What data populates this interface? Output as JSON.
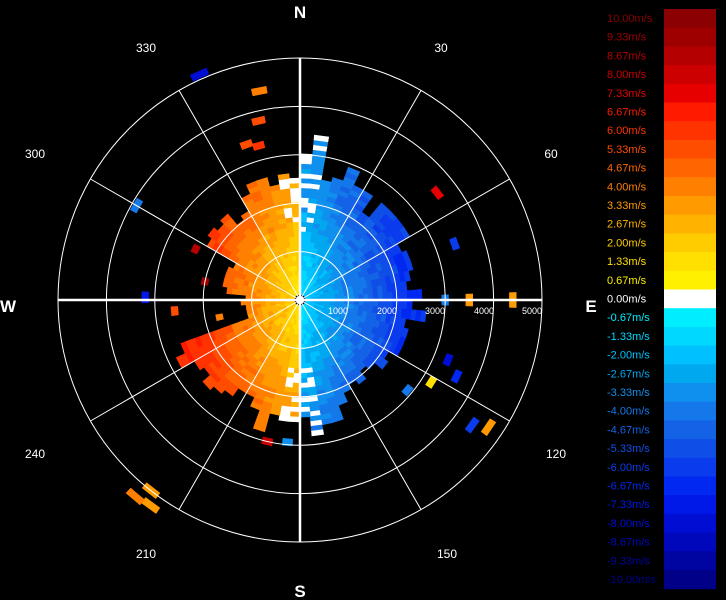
{
  "chart_data": {
    "type": "polar-ppi",
    "title": "",
    "cardinals": [
      "N",
      "E",
      "S",
      "W"
    ],
    "azimuth_labels": [
      "30",
      "60",
      "120",
      "150",
      "210",
      "240",
      "300",
      "330"
    ],
    "range_labels": [
      "1000",
      "2000",
      "3000",
      "4000",
      "5000"
    ],
    "range_max": 5000,
    "colorbar": {
      "unit": "m/s",
      "entries": [
        {
          "label": "10.00m/s",
          "value": 10.0,
          "color": "#8b0000"
        },
        {
          "label": "9.33m/s",
          "value": 9.33,
          "color": "#9e0000"
        },
        {
          "label": "8.67m/s",
          "value": 8.67,
          "color": "#b40000"
        },
        {
          "label": "8.00m/s",
          "value": 8.0,
          "color": "#cc0000"
        },
        {
          "label": "7.33m/s",
          "value": 7.33,
          "color": "#e60000"
        },
        {
          "label": "6.67m/s",
          "value": 6.67,
          "color": "#ff1a00"
        },
        {
          "label": "6.00m/s",
          "value": 6.0,
          "color": "#ff3300"
        },
        {
          "label": "5.33m/s",
          "value": 5.33,
          "color": "#ff4d00"
        },
        {
          "label": "4.67m/s",
          "value": 4.67,
          "color": "#ff6600"
        },
        {
          "label": "4.00m/s",
          "value": 4.0,
          "color": "#ff8000"
        },
        {
          "label": "3.33m/s",
          "value": 3.33,
          "color": "#ff9a00"
        },
        {
          "label": "2.67m/s",
          "value": 2.67,
          "color": "#ffb300"
        },
        {
          "label": "2.00m/s",
          "value": 2.0,
          "color": "#ffcc00"
        },
        {
          "label": "1.33m/s",
          "value": 1.33,
          "color": "#ffe000"
        },
        {
          "label": "0.67m/s",
          "value": 0.67,
          "color": "#fff000"
        },
        {
          "label": "0.00m/s",
          "value": 0.0,
          "color": "#ffffff"
        },
        {
          "label": "-0.67m/s",
          "value": -0.67,
          "color": "#00eeff"
        },
        {
          "label": "-1.33m/s",
          "value": -1.33,
          "color": "#00d8ff"
        },
        {
          "label": "-2.00m/s",
          "value": -2.0,
          "color": "#00c0ff"
        },
        {
          "label": "-2.67m/s",
          "value": -2.67,
          "color": "#00a8f0"
        },
        {
          "label": "-3.33m/s",
          "value": -3.33,
          "color": "#1090ee"
        },
        {
          "label": "-4.00m/s",
          "value": -4.0,
          "color": "#1478ea"
        },
        {
          "label": "-4.67m/s",
          "value": -4.67,
          "color": "#1462e6"
        },
        {
          "label": "-5.33m/s",
          "value": -5.33,
          "color": "#104ee8"
        },
        {
          "label": "-6.00m/s",
          "value": -6.0,
          "color": "#0a3cee"
        },
        {
          "label": "-6.67m/s",
          "value": -6.67,
          "color": "#0028f0"
        },
        {
          "label": "-7.33m/s",
          "value": -7.33,
          "color": "#0018e8"
        },
        {
          "label": "-8.00m/s",
          "value": -8.0,
          "color": "#000ed4"
        },
        {
          "label": "-8.67m/s",
          "value": -8.67,
          "color": "#0008bb"
        },
        {
          "label": "-9.33m/s",
          "value": -9.33,
          "color": "#0004a0"
        },
        {
          "label": "-10.00m/s",
          "value": -10.0,
          "color": "#000088"
        }
      ]
    },
    "field": {
      "description_none": "",
      "max_range_by_sector": [
        {
          "az_from": 0,
          "az_to": 10,
          "range": 3200
        },
        {
          "az_from": 10,
          "az_to": 35,
          "range": 2700
        },
        {
          "az_from": 35,
          "az_to": 60,
          "range": 2400
        },
        {
          "az_from": 60,
          "az_to": 80,
          "range": 2300
        },
        {
          "az_from": 80,
          "az_to": 100,
          "range": 2400
        },
        {
          "az_from": 100,
          "az_to": 130,
          "range": 2100
        },
        {
          "az_from": 130,
          "az_to": 160,
          "range": 2100
        },
        {
          "az_from": 160,
          "az_to": 180,
          "range": 2600
        },
        {
          "az_from": 180,
          "az_to": 200,
          "range": 2600
        },
        {
          "az_from": 200,
          "az_to": 225,
          "range": 2300
        },
        {
          "az_from": 225,
          "az_to": 250,
          "range": 2500
        },
        {
          "az_from": 250,
          "az_to": 275,
          "range": 1100
        },
        {
          "az_from": 275,
          "az_to": 300,
          "range": 1500
        },
        {
          "az_from": 300,
          "az_to": 330,
          "range": 2100
        },
        {
          "az_from": 330,
          "az_to": 360,
          "range": 2500
        }
      ],
      "velocity_rule": "east half (az 0-180) negative, west half (az 180-360) positive, magnitude increasing with range and toward az 90/270",
      "peak_speed": 6.5
    },
    "scattered_cells": [
      {
        "az": 349,
        "range": 4400,
        "value": 4.0
      },
      {
        "az": 347,
        "range": 3800,
        "value": 5.3
      },
      {
        "az": 345,
        "range": 3300,
        "value": 6.0
      },
      {
        "az": 341,
        "range": 3400,
        "value": 5.3
      },
      {
        "az": 336,
        "range": 5100,
        "value": -8.0
      },
      {
        "az": 52,
        "range": 3600,
        "value": 7.3
      },
      {
        "az": 70,
        "range": 3400,
        "value": -6.0
      },
      {
        "az": 300,
        "range": 3900,
        "value": -4.0
      },
      {
        "az": 296,
        "range": 2400,
        "value": 8.7
      },
      {
        "az": 281,
        "range": 2000,
        "value": 9.3
      },
      {
        "az": 271,
        "range": 3200,
        "value": -7.3
      },
      {
        "az": 265,
        "range": 2600,
        "value": 5.3
      },
      {
        "az": 258,
        "range": 1700,
        "value": 4.0
      },
      {
        "az": 90,
        "range": 3000,
        "value": -4.0
      },
      {
        "az": 90,
        "range": 3500,
        "value": 3.3
      },
      {
        "az": 90,
        "range": 4400,
        "value": 3.3
      },
      {
        "az": 112,
        "range": 3300,
        "value": -8.0
      },
      {
        "az": 116,
        "range": 3600,
        "value": -6.7
      },
      {
        "az": 122,
        "range": 3200,
        "value": 1.3
      },
      {
        "az": 130,
        "range": 2900,
        "value": -4.0
      },
      {
        "az": 126,
        "range": 4400,
        "value": -6.0
      },
      {
        "az": 124,
        "range": 4700,
        "value": 3.3
      },
      {
        "az": 185,
        "range": 2950,
        "value": -3.3
      },
      {
        "az": 193,
        "range": 3000,
        "value": 8.0
      },
      {
        "az": 216,
        "range": 5250,
        "value": 3.3
      },
      {
        "az": 218,
        "range": 5000,
        "value": 3.3
      },
      {
        "az": 220,
        "range": 5300,
        "value": 4.0
      }
    ]
  }
}
